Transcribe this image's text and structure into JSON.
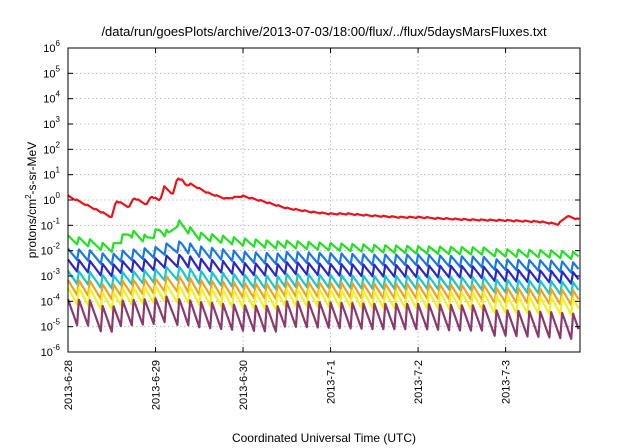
{
  "chart_data": {
    "type": "line",
    "title": "/data/run/goesPlots/archive/2013-07-03/18:00/flux/../flux/5daysMarsFluxes.txt",
    "xlabel": "Coordinated Universal Time (UTC)",
    "ylabel": "protons/cm2-s-sr-MeV",
    "ylabel_parts": {
      "pre": "protons/cm",
      "sup": "2",
      "post": "-s-sr-MeV"
    },
    "yscale": "log",
    "ylim": [
      1e-06,
      1000000.0
    ],
    "xlim": [
      0,
      5.85
    ],
    "grid": true,
    "y_ticks": [
      {
        "base": "10",
        "exp": "6",
        "value": 1000000.0
      },
      {
        "base": "10",
        "exp": "5",
        "value": 100000.0
      },
      {
        "base": "10",
        "exp": "4",
        "value": 10000.0
      },
      {
        "base": "10",
        "exp": "3",
        "value": 1000.0
      },
      {
        "base": "10",
        "exp": "2",
        "value": 100.0
      },
      {
        "base": "10",
        "exp": "1",
        "value": 10.0
      },
      {
        "base": "10",
        "exp": "0",
        "value": 1
      },
      {
        "base": "10",
        "exp": "-1",
        "value": 0.1
      },
      {
        "base": "10",
        "exp": "-2",
        "value": 0.01
      },
      {
        "base": "10",
        "exp": "-3",
        "value": 0.001
      },
      {
        "base": "10",
        "exp": "-4",
        "value": 0.0001
      },
      {
        "base": "10",
        "exp": "-5",
        "value": 1e-05
      },
      {
        "base": "10",
        "exp": "-6",
        "value": 1e-06
      }
    ],
    "x_ticks": [
      {
        "label": "2013-6-28",
        "value": 0
      },
      {
        "label": "2013-6-29",
        "value": 1
      },
      {
        "label": "2013-6-30",
        "value": 2
      },
      {
        "label": "2013-7-1",
        "value": 3
      },
      {
        "label": "2013-7-2",
        "value": 4
      },
      {
        "label": "2013-7-3",
        "value": 5
      }
    ],
    "series": [
      {
        "color": "#e8141c",
        "x": [
          0,
          0.25,
          0.5,
          0.55,
          0.7,
          0.75,
          0.9,
          0.95,
          1.05,
          1.1,
          1.2,
          1.25,
          1.3,
          1.35,
          1.4,
          1.5,
          1.6,
          1.8,
          2.0,
          2.2,
          2.5,
          2.8,
          3.0,
          3.2,
          3.5,
          3.8,
          4.0,
          4.3,
          4.6,
          5.0,
          5.4,
          5.6,
          5.7,
          5.85
        ],
        "y": [
          1.5,
          0.6,
          0.22,
          1.0,
          0.55,
          1.3,
          0.7,
          1.5,
          1.0,
          3.5,
          1.8,
          8.0,
          6.5,
          4.0,
          4.5,
          3.0,
          2.0,
          1.2,
          1.5,
          1.0,
          0.5,
          0.35,
          0.3,
          0.3,
          0.25,
          0.22,
          0.22,
          0.2,
          0.18,
          0.17,
          0.15,
          0.12,
          0.25,
          0.18
        ]
      },
      {
        "color": "#22e022",
        "x": [
          0,
          0.5,
          0.7,
          0.9,
          1.05,
          1.15,
          1.25,
          1.35,
          1.5,
          2.0,
          2.5,
          3.0,
          3.5,
          4.0,
          4.5,
          5.0,
          5.5,
          5.85
        ],
        "y": [
          0.04,
          0.02,
          0.07,
          0.04,
          0.09,
          0.06,
          0.2,
          0.12,
          0.06,
          0.035,
          0.025,
          0.02,
          0.017,
          0.015,
          0.014,
          0.013,
          0.012,
          0.01
        ]
      },
      {
        "color": "#1a78e6",
        "x": [
          0,
          0.5,
          1.0,
          1.3,
          1.5,
          2.0,
          2.5,
          3.0,
          3.5,
          4.0,
          4.5,
          5.0,
          5.5,
          5.85
        ],
        "y": [
          0.012,
          0.009,
          0.014,
          0.03,
          0.018,
          0.011,
          0.009,
          0.008,
          0.007,
          0.007,
          0.006,
          0.0055,
          0.005,
          0.004
        ]
      },
      {
        "color": "#2828c8",
        "x": [
          0,
          0.5,
          1.0,
          1.3,
          1.5,
          2.0,
          2.5,
          3.0,
          3.5,
          4.0,
          4.5,
          5.0,
          5.5,
          5.85
        ],
        "y": [
          0.0045,
          0.0035,
          0.005,
          0.009,
          0.006,
          0.004,
          0.0035,
          0.003,
          0.0028,
          0.0026,
          0.0025,
          0.0022,
          0.002,
          0.0017
        ]
      },
      {
        "color": "#18c8c8",
        "x": [
          0,
          0.5,
          1.0,
          1.3,
          1.5,
          2.0,
          2.5,
          3.0,
          3.5,
          4.0,
          4.5,
          5.0,
          5.5,
          5.85
        ],
        "y": [
          0.0016,
          0.0013,
          0.0018,
          0.003,
          0.002,
          0.0014,
          0.0012,
          0.0011,
          0.001,
          0.001,
          0.0009,
          0.0009,
          0.0008,
          0.0007
        ]
      },
      {
        "color": "#f2a020",
        "x": [
          0,
          0.5,
          1.0,
          1.3,
          1.5,
          2.0,
          2.5,
          3.0,
          3.5,
          4.0,
          4.5,
          5.0,
          5.5,
          5.85
        ],
        "y": [
          0.0007,
          0.0006,
          0.0008,
          0.0013,
          0.0009,
          0.0007,
          0.0006,
          0.00055,
          0.0005,
          0.0005,
          0.00045,
          0.00045,
          0.0004,
          0.00035
        ]
      },
      {
        "color": "#f2f020",
        "x": [
          0,
          0.5,
          1.0,
          1.3,
          1.5,
          2.0,
          2.5,
          3.0,
          3.5,
          4.0,
          4.5,
          5.0,
          5.5,
          5.85
        ],
        "y": [
          0.00035,
          0.0003,
          0.0004,
          0.0006,
          0.00045,
          0.00035,
          0.0003,
          0.00028,
          0.00025,
          0.00025,
          0.00023,
          0.00022,
          0.0002,
          0.00018
        ]
      },
      {
        "color": "#8c3a6e",
        "x": [
          0,
          0.5,
          1.0,
          1.3,
          1.5,
          2.0,
          2.5,
          3.0,
          3.5,
          4.0,
          4.5,
          5.0,
          5.5,
          5.85
        ],
        "y": [
          0.00012,
          0.0001,
          0.00013,
          0.0002,
          0.00015,
          0.00011,
          0.0001,
          9e-05,
          8e-05,
          8e-05,
          7e-05,
          7e-05,
          6e-05,
          5e-05
        ]
      }
    ],
    "oscillation": {
      "period_days": 0.125,
      "drop_decades": [
        0.3,
        0.35,
        0.5,
        0.55,
        0.6,
        0.7,
        0.8,
        1.2
      ]
    }
  }
}
